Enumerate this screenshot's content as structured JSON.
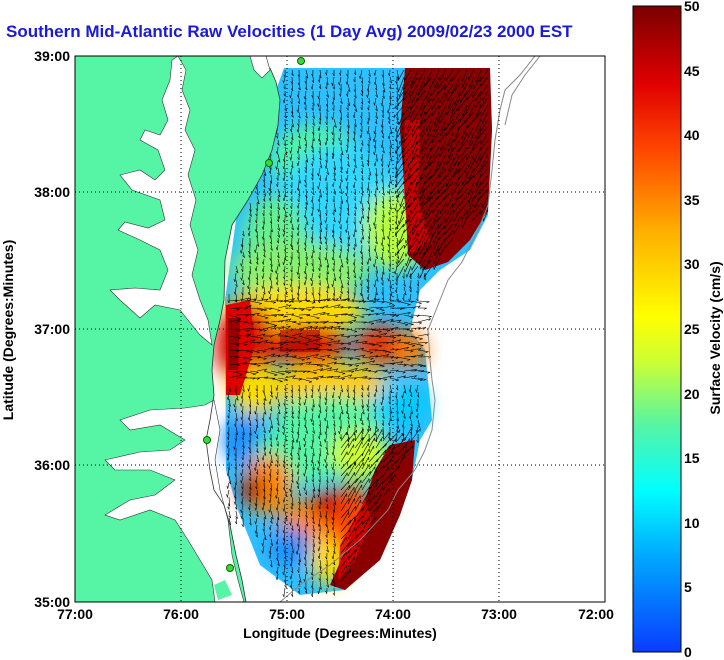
{
  "title": "Southern Mid-Atlantic Raw Velocities (1 Day Avg) 2009/02/23 2000 EST",
  "x_axis": {
    "label": "Longitude (Degrees:Minutes)",
    "ticks": [
      "77:00",
      "76:00",
      "75:00",
      "74:00",
      "73:00",
      "72:00"
    ],
    "range": [
      -77,
      -72
    ]
  },
  "y_axis": {
    "label": "Latitude (Degrees:Minutes)",
    "ticks": [
      "35:00",
      "36:00",
      "37:00",
      "38:00",
      "39:00"
    ],
    "range": [
      35,
      39
    ]
  },
  "colorbar": {
    "label": "Surface Velocity (cm/s)",
    "ticks": [
      "0",
      "5",
      "10",
      "15",
      "20",
      "25",
      "30",
      "35",
      "40",
      "45",
      "50"
    ],
    "range": [
      0,
      50
    ],
    "colors": [
      "#0a3cff",
      "#00aaff",
      "#00ffff",
      "#55f5a5",
      "#ccff33",
      "#ffff00",
      "#ffb000",
      "#ff4400",
      "#e00000",
      "#7a0000"
    ]
  },
  "map": {
    "land_color": "#55f5a5",
    "water_color": "#ffffff",
    "grid": "dotted"
  },
  "chart_data": {
    "type": "heatmap",
    "quantity": "surface current speed with direction vectors",
    "units": "cm/s",
    "regions": [
      {
        "lon": -73.3,
        "lat": 38.3,
        "speed": 48
      },
      {
        "lon": -73.5,
        "lat": 37.8,
        "speed": 45
      },
      {
        "lon": -74.6,
        "lat": 38.0,
        "speed": 13
      },
      {
        "lon": -74.2,
        "lat": 37.5,
        "speed": 18
      },
      {
        "lon": -75.2,
        "lat": 38.3,
        "speed": 12
      },
      {
        "lon": -75.1,
        "lat": 37.5,
        "speed": 14
      },
      {
        "lon": -75.3,
        "lat": 36.9,
        "speed": 40
      },
      {
        "lon": -74.7,
        "lat": 36.8,
        "speed": 36
      },
      {
        "lon": -74.1,
        "lat": 36.8,
        "speed": 38
      },
      {
        "lon": -74.7,
        "lat": 36.3,
        "speed": 12
      },
      {
        "lon": -75.3,
        "lat": 36.2,
        "speed": 8
      },
      {
        "lon": -73.9,
        "lat": 35.6,
        "speed": 47
      },
      {
        "lon": -74.4,
        "lat": 35.4,
        "speed": 40
      },
      {
        "lon": -75.0,
        "lat": 35.6,
        "speed": 14
      }
    ]
  }
}
